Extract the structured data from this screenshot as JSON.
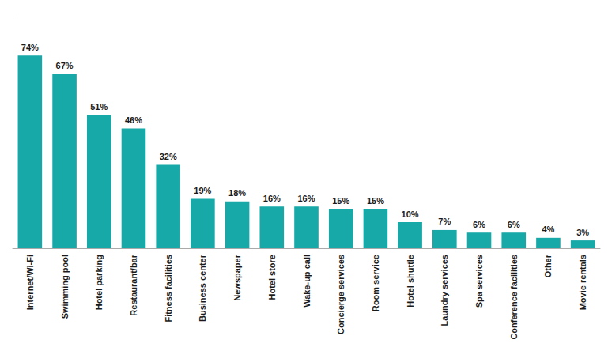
{
  "chart_data": {
    "type": "bar",
    "categories": [
      "Internet/Wi-Fi",
      "Swimming pool",
      "Hotel parking",
      "Restaurant/bar",
      "Fitness facilities",
      "Business center",
      "Newspaper",
      "Hotel store",
      "Wake-up call",
      "Concierge services",
      "Room service",
      "Hotel shuttle",
      "Laundry services",
      "Spa services",
      "Conference facilities",
      "Other",
      "Movie rentals"
    ],
    "values": [
      74,
      67,
      51,
      46,
      32,
      19,
      18,
      16,
      16,
      15,
      15,
      10,
      7,
      6,
      6,
      4,
      3
    ],
    "value_labels": [
      "74%",
      "67%",
      "51%",
      "46%",
      "32%",
      "19%",
      "18%",
      "16%",
      "16%",
      "15%",
      "15%",
      "10%",
      "7%",
      "6%",
      "6%",
      "4%",
      "3%"
    ],
    "color": "#17A8A8",
    "ylim": [
      0,
      88
    ],
    "data_labels": true,
    "tick_labels": "x",
    "grid": false
  }
}
